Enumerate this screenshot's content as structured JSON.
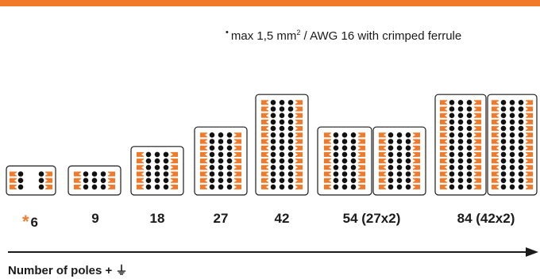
{
  "footnote": {
    "bullet": "•",
    "text_before_sup": "max 1,5 mm",
    "sup": "2",
    "text_after_sup": " / AWG 16 with crimped ferrule"
  },
  "connectors": [
    {
      "poles_label": "6",
      "asterisk": "*",
      "rows": 3,
      "cols": 2,
      "layout": "split"
    },
    {
      "poles_label": "9",
      "asterisk": "",
      "rows": 3,
      "cols": 3,
      "layout": "center"
    },
    {
      "poles_label": "18",
      "asterisk": "",
      "rows": 6,
      "cols": 3,
      "layout": "grid"
    },
    {
      "poles_label": "27",
      "asterisk": "",
      "rows": 9,
      "cols": 3,
      "layout": "grid"
    },
    {
      "poles_label": "42",
      "asterisk": "",
      "rows": 14,
      "cols": 3,
      "layout": "grid"
    },
    {
      "poles_label": "54 (27x2)",
      "asterisk": "",
      "rows": 9,
      "cols": 3,
      "layout": "double"
    },
    {
      "poles_label": "84 (42x2)",
      "asterisk": "",
      "rows": 14,
      "cols": 3,
      "layout": "double"
    }
  ],
  "axis": {
    "title": "Number of poles +",
    "ground_symbol": "⏚"
  },
  "colors": {
    "accent": "#f07a2a",
    "pin": "#111111",
    "frame": "#1a1a1a"
  }
}
